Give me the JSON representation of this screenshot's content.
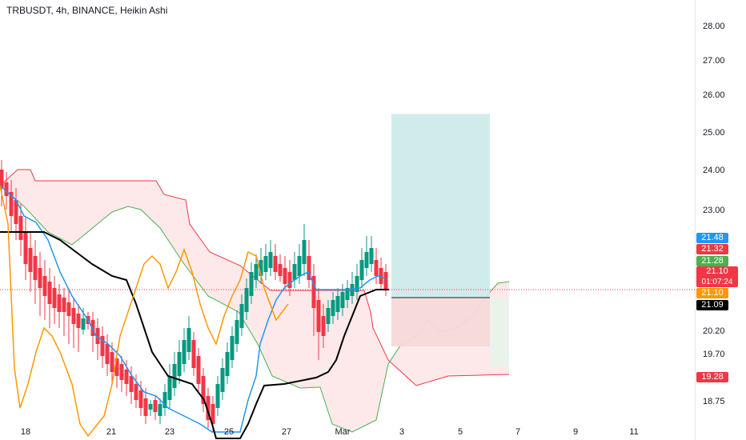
{
  "title": "TRBUSDT, 4h, BINANCE, Heikin Ashi",
  "chart_data": {
    "type": "candlestick",
    "symbol": "TRBUSDT",
    "interval": "4h",
    "exchange": "BINANCE",
    "style": "Heikin Ashi",
    "y_ticks": [
      "28.00",
      "27.00",
      "26.00",
      "25.00",
      "24.00",
      "23.00",
      "20.20",
      "19.70",
      "18.75"
    ],
    "y_range": [
      18.3,
      28.4
    ],
    "x_ticks": [
      "18",
      "21",
      "23",
      "25",
      "27",
      "Mar",
      "3",
      "5",
      "7",
      "9",
      "11"
    ],
    "last_price": 21.1,
    "countdown": "01:07:24",
    "price_labels": [
      {
        "value": "21.48",
        "color": "#2196f3"
      },
      {
        "value": "21.32",
        "color": "#f23645"
      },
      {
        "value": "21.28",
        "color": "#4caf50"
      },
      {
        "value": "21.10",
        "color": "#f23645",
        "sub": "01:07:24"
      },
      {
        "value": "21.10",
        "color": "#ff9800"
      },
      {
        "value": "21.09",
        "color": "#000000"
      },
      {
        "value": "19.28",
        "color": "#f23645"
      }
    ],
    "position": {
      "type": "long",
      "entry": 21.1,
      "target": 25.48,
      "stop": 19.73,
      "colors": {
        "profit": "#cdebe9",
        "loss": "#f7d9d9"
      }
    },
    "candle_colors": {
      "up": "#089981",
      "down": "#f23645"
    },
    "line_colors": {
      "tenkan": "#2196f3",
      "kijun": "#000000",
      "chikou": "#ff9800",
      "span_a": "#4caf50",
      "span_b": "#f23645"
    }
  }
}
